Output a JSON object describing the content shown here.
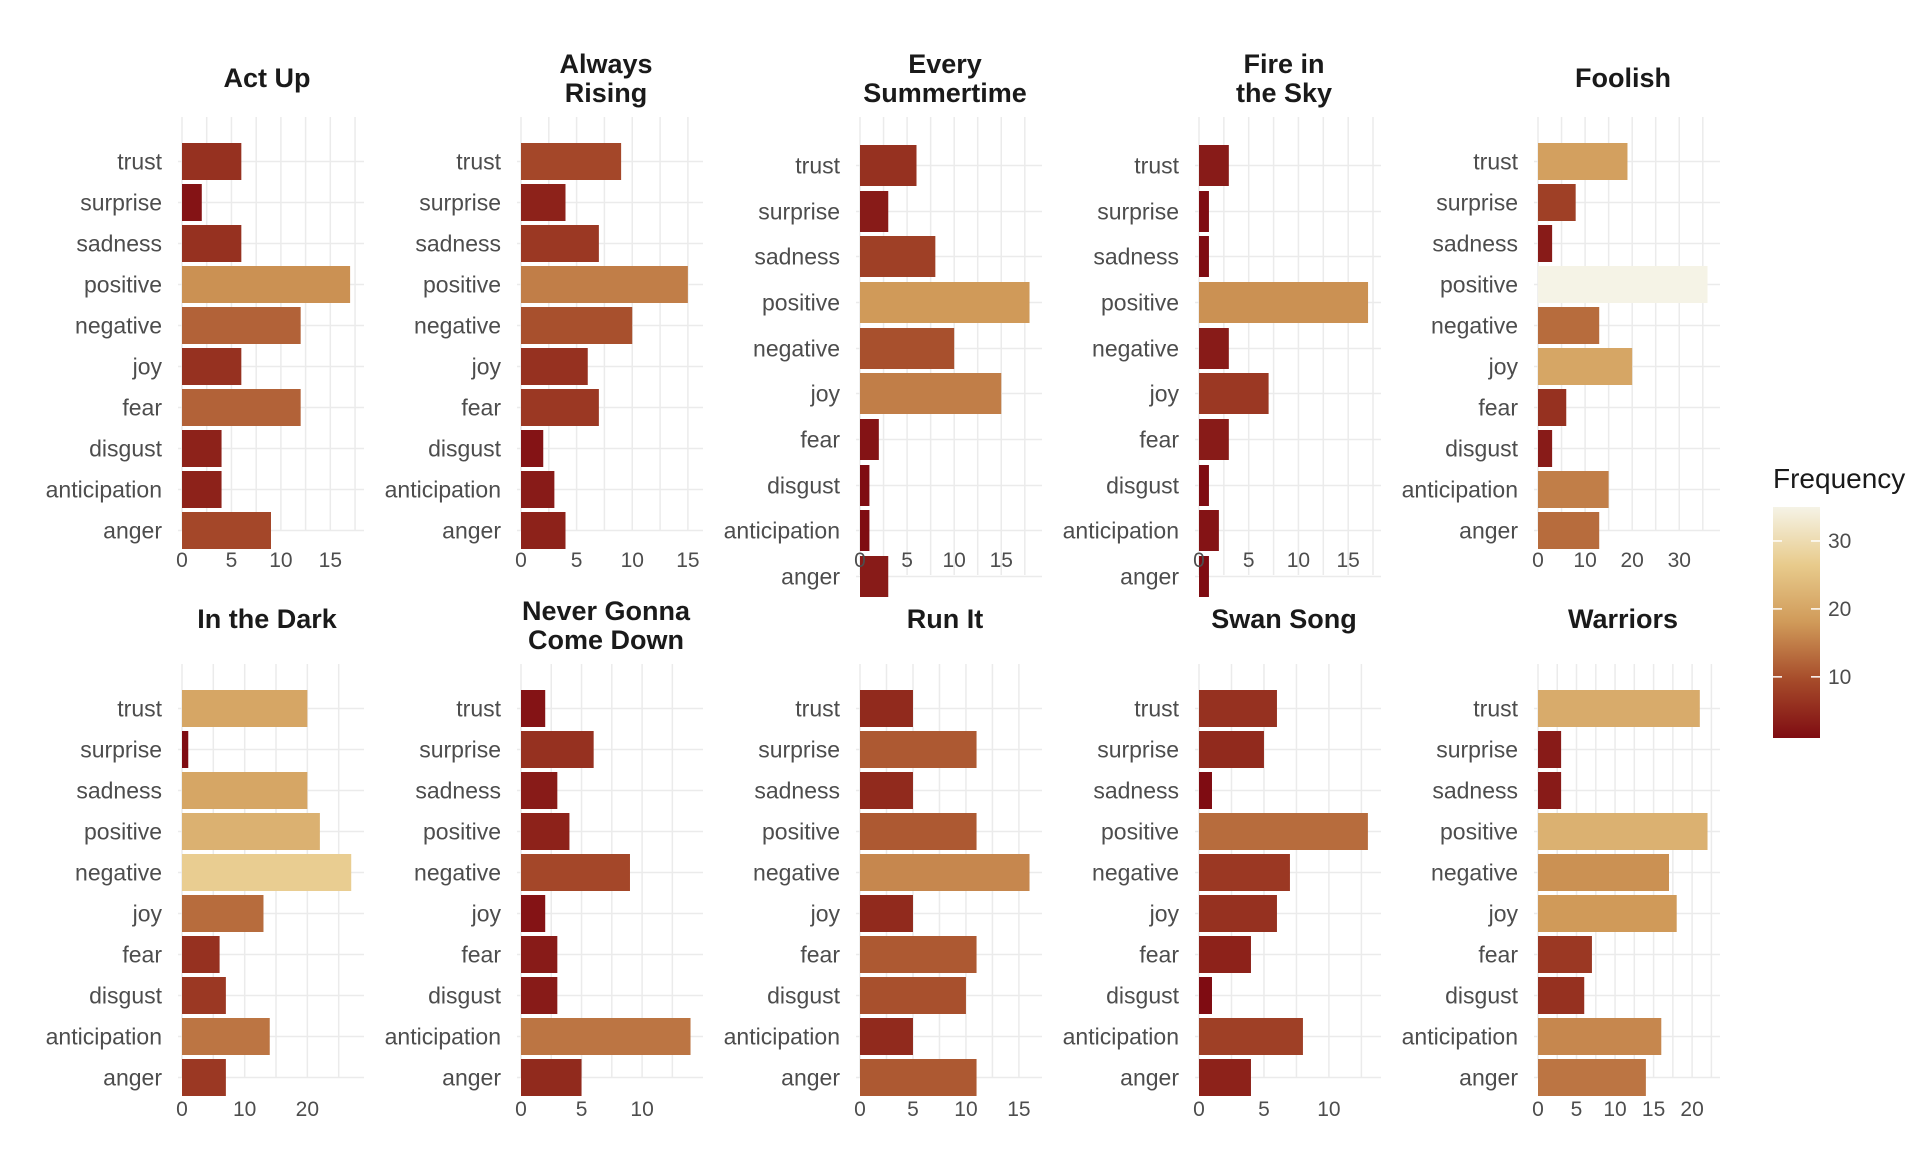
{
  "chart_data": {
    "type": "bar",
    "orientation": "horizontal",
    "categories": [
      "trust",
      "surprise",
      "sadness",
      "positive",
      "negative",
      "joy",
      "fear",
      "disgust",
      "anticipation",
      "anger"
    ],
    "legend": {
      "title": "Frequency",
      "ticks": [
        10,
        20,
        30
      ],
      "range": [
        1,
        35
      ],
      "colors": [
        "#7f0c12",
        "#a64b2a",
        "#d09a59",
        "#e8cb8c",
        "#f5f3e6"
      ],
      "placement": "right"
    },
    "grid": true,
    "panels": [
      {
        "title": [
          "Act Up"
        ],
        "values": [
          6,
          2,
          6,
          17,
          12,
          6,
          12,
          4,
          4,
          9
        ],
        "xlim": [
          0,
          18
        ],
        "xticks": [
          0,
          5,
          10,
          15
        ]
      },
      {
        "title": [
          "Always",
          "Rising"
        ],
        "values": [
          9,
          4,
          7,
          15,
          10,
          6,
          7,
          2,
          3,
          4
        ],
        "xlim": [
          0,
          16
        ],
        "xticks": [
          0,
          5,
          10,
          15
        ]
      },
      {
        "title": [
          "Every",
          "Summertime"
        ],
        "values": [
          6,
          3,
          8,
          18,
          10,
          15,
          2,
          1,
          1,
          3
        ],
        "xlim": [
          0,
          18.9
        ],
        "xticks": [
          0,
          5,
          10,
          15
        ]
      },
      {
        "title": [
          "Fire in",
          "the Sky"
        ],
        "values": [
          3,
          1,
          1,
          17,
          3,
          7,
          3,
          1,
          2,
          1
        ],
        "xlim": [
          0,
          17.9
        ],
        "xticks": [
          0,
          5,
          10,
          15
        ]
      },
      {
        "title": [
          "Foolish"
        ],
        "values": [
          19,
          8,
          3,
          36,
          13,
          20,
          6,
          3,
          15,
          13
        ],
        "xlim": [
          0,
          37.8
        ],
        "xticks": [
          0,
          10,
          20,
          30
        ]
      },
      {
        "title": [
          "In the Dark"
        ],
        "values": [
          20,
          1,
          20,
          22,
          27,
          13,
          6,
          7,
          14,
          7
        ],
        "xlim": [
          0,
          28.4
        ],
        "xticks": [
          0,
          10,
          20
        ]
      },
      {
        "title": [
          "Never Gonna",
          "Come Down"
        ],
        "values": [
          2,
          6,
          3,
          4,
          9,
          2,
          3,
          3,
          14,
          5
        ],
        "xlim": [
          0,
          14.7
        ],
        "xticks": [
          0,
          5,
          10
        ]
      },
      {
        "title": [
          "Run It"
        ],
        "values": [
          5,
          11,
          5,
          11,
          16,
          5,
          11,
          10,
          5,
          11
        ],
        "xlim": [
          0,
          16.8
        ],
        "xticks": [
          0,
          5,
          10,
          15
        ]
      },
      {
        "title": [
          "Swan Song"
        ],
        "values": [
          6,
          5,
          1,
          13,
          7,
          6,
          4,
          1,
          8,
          4
        ],
        "xlim": [
          0,
          13.7
        ],
        "xticks": [
          0,
          5,
          10
        ]
      },
      {
        "title": [
          "Warriors"
        ],
        "values": [
          21,
          3,
          3,
          22,
          17,
          18,
          7,
          6,
          16,
          14
        ],
        "xlim": [
          0,
          23.1
        ],
        "xticks": [
          0,
          5,
          10,
          15,
          20
        ]
      }
    ]
  }
}
